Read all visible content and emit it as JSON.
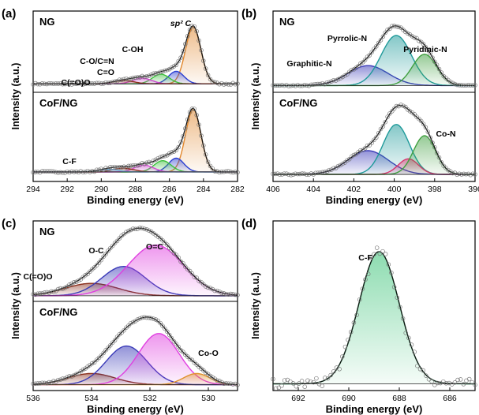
{
  "figure": {
    "panels": [
      {
        "id": "a",
        "panel_label": "(a)",
        "ylabel": "Intensity (a.u.)",
        "xlabel": "Binding energy (eV)",
        "xlim": [
          294,
          282
        ],
        "ticks": [
          "294",
          "292",
          "290",
          "288",
          "286",
          "284",
          "282"
        ],
        "subplots": [
          {
            "sample": "NG",
            "baseline": 0.08,
            "peaks": [
              {
                "label": "sp² C",
                "center": 284.6,
                "height": 1.0,
                "width": 0.45,
                "color": "#e0862c"
              },
              {
                "label": "C-OH",
                "center": 285.6,
                "height": 0.22,
                "width": 0.45,
                "color": "#2b3fd1"
              },
              {
                "label": "C-O/C=N",
                "center": 286.5,
                "height": 0.17,
                "width": 0.5,
                "color": "#3bbf3b"
              },
              {
                "label": "C=O",
                "center": 287.6,
                "height": 0.1,
                "width": 0.55,
                "color": "#d04ad0"
              },
              {
                "label": "C(=O)O",
                "center": 288.7,
                "height": 0.06,
                "width": 0.6,
                "color": "#8a2f1c"
              }
            ],
            "annotations": [
              "sp² C",
              "C-OH",
              "C-O/C=N",
              "C=O",
              "C(=O)O"
            ]
          },
          {
            "sample": "CoF/NG",
            "baseline": 0.09,
            "peaks": [
              {
                "label": "sp² C",
                "center": 284.6,
                "height": 1.0,
                "width": 0.45,
                "color": "#e0862c"
              },
              {
                "label": "C-OH",
                "center": 285.6,
                "height": 0.22,
                "width": 0.45,
                "color": "#2b3fd1"
              },
              {
                "label": "C-O/C=N",
                "center": 286.4,
                "height": 0.18,
                "width": 0.5,
                "color": "#3bbf3b"
              },
              {
                "label": "C=O",
                "center": 287.5,
                "height": 0.11,
                "width": 0.55,
                "color": "#d04ad0"
              },
              {
                "label": "C(=O)O",
                "center": 288.7,
                "height": 0.06,
                "width": 0.6,
                "color": "#8a2f1c"
              },
              {
                "label": "C-F",
                "center": 289.6,
                "height": 0.04,
                "width": 0.6,
                "color": "#6fb2e0"
              }
            ],
            "annotations": [
              "C-F"
            ]
          }
        ]
      },
      {
        "id": "b",
        "panel_label": "(b)",
        "ylabel": "Intensity (a.u.)",
        "xlabel": "Binding energy (eV)",
        "xlim": [
          406,
          396
        ],
        "ticks": [
          "406",
          "404",
          "402",
          "400",
          "398",
          "396"
        ],
        "subplots": [
          {
            "sample": "NG",
            "baseline": 0.05,
            "peaks": [
              {
                "label": "Graphitic-N",
                "center": 401.3,
                "height": 0.35,
                "width": 1.0,
                "color": "#3a3ab8"
              },
              {
                "label": "Pyrrolic-N",
                "center": 399.9,
                "height": 0.88,
                "width": 0.75,
                "color": "#1f9a9a"
              },
              {
                "label": "Pyridinic-N",
                "center": 398.5,
                "height": 0.55,
                "width": 0.6,
                "color": "#3f9f3f"
              }
            ],
            "annotations": [
              "Graphitic-N",
              "Pyrrolic-N",
              "Pyridinic-N"
            ]
          },
          {
            "sample": "CoF/NG",
            "baseline": 0.05,
            "peaks": [
              {
                "label": "Graphitic-N",
                "center": 401.3,
                "height": 0.38,
                "width": 1.0,
                "color": "#3a3ab8"
              },
              {
                "label": "Pyrrolic-N",
                "center": 399.9,
                "height": 0.8,
                "width": 0.65,
                "color": "#1f9a9a"
              },
              {
                "label": "Co-N",
                "center": 399.3,
                "height": 0.25,
                "width": 0.5,
                "color": "#d9336c"
              },
              {
                "label": "Pyridinic-N",
                "center": 398.5,
                "height": 0.62,
                "width": 0.55,
                "color": "#3f9f3f"
              }
            ],
            "annotations": [
              "Co-N"
            ]
          }
        ]
      },
      {
        "id": "c",
        "panel_label": "(c)",
        "ylabel": "Intensity (a.u.)",
        "xlabel": "Binding energy (eV)",
        "xlim": [
          536,
          529
        ],
        "ticks": [
          "536",
          "534",
          "532",
          "530"
        ],
        "subplots": [
          {
            "sample": "NG",
            "baseline": 0.03,
            "peaks": [
              {
                "label": "C(=O)O",
                "center": 534.0,
                "height": 0.22,
                "width": 0.9,
                "color": "#8a2f1c"
              },
              {
                "label": "O-C",
                "center": 532.9,
                "height": 0.52,
                "width": 0.75,
                "color": "#3a3ab8"
              },
              {
                "label": "O=C",
                "center": 531.8,
                "height": 0.9,
                "width": 0.95,
                "color": "#e040e0"
              }
            ],
            "annotations": [
              "O-C",
              "O=C",
              "C(=O)O"
            ]
          },
          {
            "sample": "CoF/NG",
            "baseline": 0.03,
            "peaks": [
              {
                "label": "C(=O)O",
                "center": 534.0,
                "height": 0.18,
                "width": 0.8,
                "color": "#8a2f1c"
              },
              {
                "label": "O-C",
                "center": 532.8,
                "height": 0.62,
                "width": 0.7,
                "color": "#3a3ab8"
              },
              {
                "label": "O=C",
                "center": 531.7,
                "height": 0.82,
                "width": 0.7,
                "color": "#e040e0"
              },
              {
                "label": "Co-O",
                "center": 530.4,
                "height": 0.18,
                "width": 0.45,
                "color": "#e0902c"
              }
            ],
            "annotations": [
              "Co-O"
            ]
          }
        ]
      },
      {
        "id": "d",
        "panel_label": "(d)",
        "ylabel": "Intensity (a.u.)",
        "xlabel": "Binding energy (eV)",
        "xlim": [
          693,
          685
        ],
        "ticks": [
          "692",
          "690",
          "688",
          "686"
        ],
        "subplots": [
          {
            "sample": "",
            "baseline": 0.02,
            "peaks": [
              {
                "label": "C-F",
                "center": 688.8,
                "height": 0.95,
                "width": 0.8,
                "color": "#2fbf6f"
              }
            ],
            "annotations": [
              "C-F"
            ]
          }
        ]
      }
    ]
  },
  "chart_data": [
    {
      "type": "area",
      "panel": "(a)",
      "xlabel": "Binding energy (eV)",
      "ylabel": "Intensity (a.u.)",
      "xlim": [
        294,
        282
      ],
      "series": [
        {
          "name": "NG: sp² C",
          "x": [
            284.6
          ],
          "values": [
            1.0
          ]
        },
        {
          "name": "NG: C-OH",
          "x": [
            285.6
          ],
          "values": [
            0.22
          ]
        },
        {
          "name": "NG: C-O/C=N",
          "x": [
            286.5
          ],
          "values": [
            0.17
          ]
        },
        {
          "name": "NG: C=O",
          "x": [
            287.6
          ],
          "values": [
            0.1
          ]
        },
        {
          "name": "NG: C(=O)O",
          "x": [
            288.7
          ],
          "values": [
            0.06
          ]
        },
        {
          "name": "CoF/NG: C-F",
          "x": [
            289.6
          ],
          "values": [
            0.04
          ]
        }
      ]
    },
    {
      "type": "area",
      "panel": "(b)",
      "xlabel": "Binding energy (eV)",
      "ylabel": "Intensity (a.u.)",
      "xlim": [
        406,
        396
      ],
      "series": [
        {
          "name": "NG: Graphitic-N",
          "x": [
            401.3
          ],
          "values": [
            0.35
          ]
        },
        {
          "name": "NG: Pyrrolic-N",
          "x": [
            399.9
          ],
          "values": [
            0.88
          ]
        },
        {
          "name": "NG: Pyridinic-N",
          "x": [
            398.5
          ],
          "values": [
            0.55
          ]
        },
        {
          "name": "CoF/NG: Co-N",
          "x": [
            399.3
          ],
          "values": [
            0.25
          ]
        }
      ]
    },
    {
      "type": "area",
      "panel": "(c)",
      "xlabel": "Binding energy (eV)",
      "ylabel": "Intensity (a.u.)",
      "xlim": [
        536,
        529
      ],
      "series": [
        {
          "name": "NG: C(=O)O",
          "x": [
            534.0
          ],
          "values": [
            0.22
          ]
        },
        {
          "name": "NG: O-C",
          "x": [
            532.9
          ],
          "values": [
            0.52
          ]
        },
        {
          "name": "NG: O=C",
          "x": [
            531.8
          ],
          "values": [
            0.9
          ]
        },
        {
          "name": "CoF/NG: Co-O",
          "x": [
            530.4
          ],
          "values": [
            0.18
          ]
        }
      ]
    },
    {
      "type": "area",
      "panel": "(d)",
      "xlabel": "Binding energy (eV)",
      "ylabel": "Intensity (a.u.)",
      "xlim": [
        693,
        685
      ],
      "series": [
        {
          "name": "C-F",
          "x": [
            688.8
          ],
          "values": [
            0.95
          ]
        }
      ]
    }
  ]
}
